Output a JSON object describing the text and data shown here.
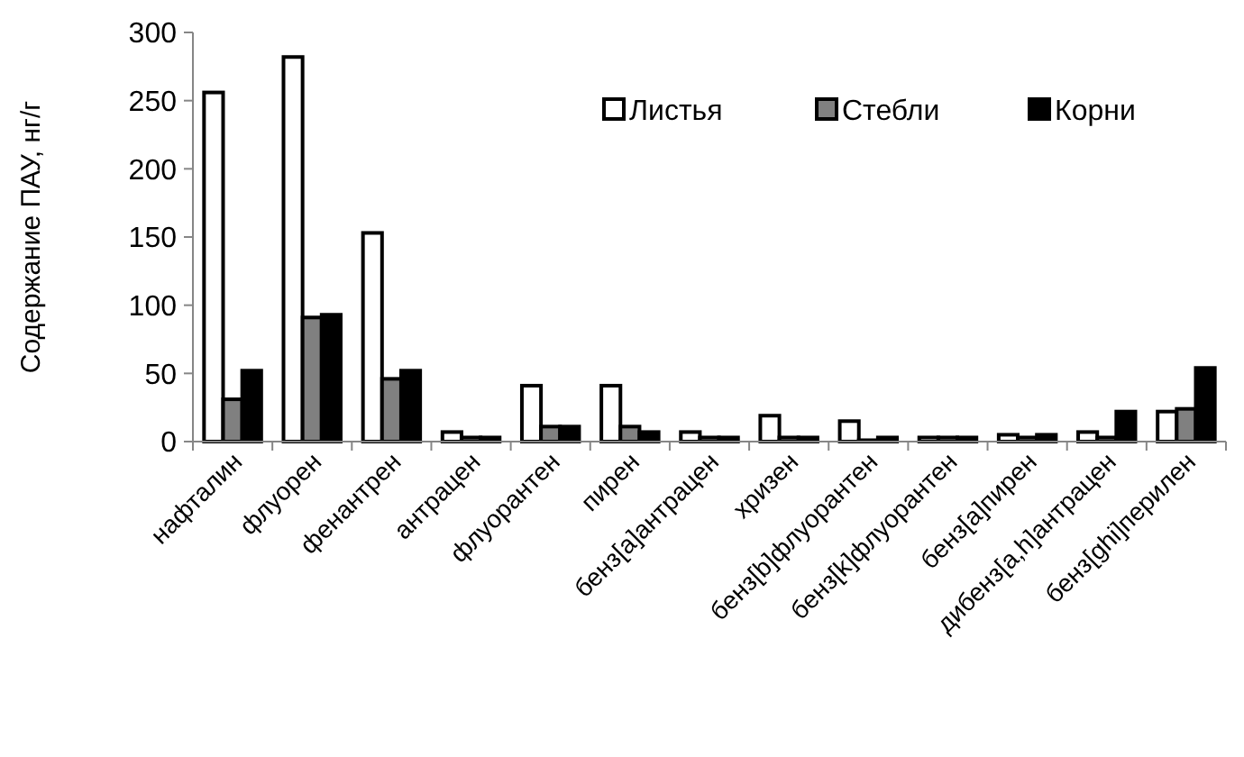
{
  "chart_data": {
    "type": "bar",
    "ylabel": "Содержание ПАУ, нг/г",
    "categories": [
      "нафталин",
      "флуорен",
      "фенантрен",
      "антрацен",
      "флуорантен",
      "пирен",
      "бенз[a]антрацен",
      "хризен",
      "бенз[b]флуорантен",
      "бенз[k]флуорантен",
      "бенз[a]пирен",
      "дибенз[a,h]антрацен",
      "бенз[ghi]перилен"
    ],
    "series": [
      {
        "name": "Листья",
        "color": "#ffffff",
        "values": [
          256,
          282,
          153,
          7,
          41,
          41,
          7,
          19,
          15,
          3,
          5,
          7,
          22
        ]
      },
      {
        "name": "Стебли",
        "color": "#808080",
        "values": [
          31,
          91,
          46,
          3,
          11,
          11,
          3,
          3,
          1,
          3,
          3,
          3,
          24
        ]
      },
      {
        "name": "Корни",
        "color": "#000000",
        "values": [
          52,
          93,
          52,
          3,
          11,
          7,
          3,
          3,
          3,
          3,
          5,
          22,
          54
        ]
      }
    ],
    "ylim": [
      0,
      300
    ],
    "yticks": [
      0,
      50,
      100,
      150,
      200,
      250,
      300
    ],
    "grid": false,
    "legend": "top right"
  }
}
